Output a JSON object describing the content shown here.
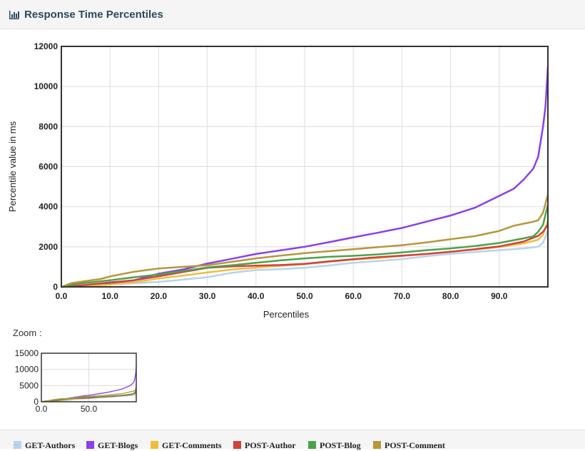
{
  "header": {
    "title": "Response Time Percentiles"
  },
  "zoom": {
    "label": "Zoom :"
  },
  "chart_data": {
    "type": "line",
    "ylabel": "Percentile value in ms",
    "xlabel": "Percentiles",
    "xlim": [
      0,
      100
    ],
    "ylim": [
      0,
      12000
    ],
    "x_ticks": [
      0,
      10,
      20,
      30,
      40,
      50,
      60,
      70,
      80,
      90
    ],
    "x_tick_labels": [
      "0.0",
      "10.0",
      "20.0",
      "30.0",
      "40.0",
      "50.0",
      "60.0",
      "70.0",
      "80.0",
      "90.0"
    ],
    "y_ticks": [
      0,
      2000,
      4000,
      6000,
      8000,
      10000,
      12000
    ],
    "y_tick_labels": [
      "0",
      "2000",
      "4000",
      "6000",
      "8000",
      "10000",
      "12000"
    ],
    "grid": true,
    "legend": "bottom",
    "series": [
      {
        "name": "GET-Authors",
        "color": "#b6d3eb",
        "points": [
          [
            0,
            0
          ],
          [
            5,
            60
          ],
          [
            10,
            130
          ],
          [
            15,
            180
          ],
          [
            20,
            250
          ],
          [
            25,
            360
          ],
          [
            30,
            480
          ],
          [
            35,
            700
          ],
          [
            40,
            840
          ],
          [
            45,
            880
          ],
          [
            50,
            950
          ],
          [
            55,
            1070
          ],
          [
            60,
            1200
          ],
          [
            65,
            1290
          ],
          [
            70,
            1380
          ],
          [
            75,
            1530
          ],
          [
            80,
            1650
          ],
          [
            85,
            1740
          ],
          [
            90,
            1830
          ],
          [
            95,
            1920
          ],
          [
            98,
            2000
          ],
          [
            99,
            2200
          ],
          [
            99.5,
            2500
          ],
          [
            100,
            2850
          ]
        ]
      },
      {
        "name": "GET-Blogs",
        "color": "#8a3ff0",
        "points": [
          [
            0,
            0
          ],
          [
            5,
            70
          ],
          [
            10,
            180
          ],
          [
            15,
            330
          ],
          [
            20,
            660
          ],
          [
            25,
            870
          ],
          [
            30,
            1160
          ],
          [
            35,
            1400
          ],
          [
            40,
            1640
          ],
          [
            45,
            1820
          ],
          [
            50,
            2000
          ],
          [
            55,
            2230
          ],
          [
            60,
            2470
          ],
          [
            65,
            2700
          ],
          [
            70,
            2940
          ],
          [
            75,
            3250
          ],
          [
            80,
            3560
          ],
          [
            85,
            3950
          ],
          [
            90,
            4540
          ],
          [
            93,
            4900
          ],
          [
            95,
            5350
          ],
          [
            97,
            5900
          ],
          [
            98,
            6500
          ],
          [
            99,
            8000
          ],
          [
            99.5,
            9000
          ],
          [
            100,
            11000
          ]
        ]
      },
      {
        "name": "GET-Comments",
        "color": "#efbd3e",
        "points": [
          [
            0,
            0
          ],
          [
            5,
            40
          ],
          [
            10,
            110
          ],
          [
            15,
            230
          ],
          [
            20,
            420
          ],
          [
            25,
            560
          ],
          [
            30,
            720
          ],
          [
            35,
            860
          ],
          [
            40,
            960
          ],
          [
            45,
            1050
          ],
          [
            50,
            1130
          ],
          [
            55,
            1250
          ],
          [
            60,
            1360
          ],
          [
            65,
            1440
          ],
          [
            70,
            1540
          ],
          [
            75,
            1640
          ],
          [
            80,
            1760
          ],
          [
            85,
            1860
          ],
          [
            90,
            1990
          ],
          [
            95,
            2170
          ],
          [
            98,
            2350
          ],
          [
            99,
            2600
          ],
          [
            100,
            3300
          ]
        ]
      },
      {
        "name": "POST-Author",
        "color": "#d1423f",
        "points": [
          [
            0,
            0
          ],
          [
            5,
            100
          ],
          [
            10,
            220
          ],
          [
            15,
            330
          ],
          [
            20,
            530
          ],
          [
            25,
            740
          ],
          [
            30,
            950
          ],
          [
            35,
            1020
          ],
          [
            40,
            1060
          ],
          [
            45,
            1090
          ],
          [
            50,
            1150
          ],
          [
            55,
            1270
          ],
          [
            60,
            1380
          ],
          [
            65,
            1480
          ],
          [
            70,
            1560
          ],
          [
            75,
            1640
          ],
          [
            80,
            1750
          ],
          [
            85,
            1880
          ],
          [
            90,
            2020
          ],
          [
            95,
            2260
          ],
          [
            98,
            2550
          ],
          [
            99,
            2750
          ],
          [
            100,
            3100
          ]
        ]
      },
      {
        "name": "POST-Blog",
        "color": "#49a34a",
        "points": [
          [
            0,
            0
          ],
          [
            3,
            150
          ],
          [
            10,
            330
          ],
          [
            15,
            480
          ],
          [
            20,
            620
          ],
          [
            25,
            790
          ],
          [
            30,
            970
          ],
          [
            35,
            1080
          ],
          [
            40,
            1200
          ],
          [
            45,
            1320
          ],
          [
            50,
            1420
          ],
          [
            55,
            1500
          ],
          [
            60,
            1550
          ],
          [
            65,
            1620
          ],
          [
            70,
            1720
          ],
          [
            75,
            1830
          ],
          [
            80,
            1920
          ],
          [
            85,
            2040
          ],
          [
            90,
            2190
          ],
          [
            95,
            2420
          ],
          [
            97,
            2520
          ],
          [
            98,
            2750
          ],
          [
            99,
            3100
          ],
          [
            99.5,
            3600
          ],
          [
            100,
            4100
          ]
        ]
      },
      {
        "name": "POST-Comment",
        "color": "#b8963a",
        "points": [
          [
            0,
            0
          ],
          [
            2,
            180
          ],
          [
            5,
            290
          ],
          [
            8,
            390
          ],
          [
            10,
            520
          ],
          [
            15,
            760
          ],
          [
            20,
            920
          ],
          [
            25,
            1000
          ],
          [
            30,
            1080
          ],
          [
            35,
            1250
          ],
          [
            40,
            1420
          ],
          [
            45,
            1560
          ],
          [
            50,
            1680
          ],
          [
            55,
            1780
          ],
          [
            60,
            1880
          ],
          [
            65,
            1980
          ],
          [
            70,
            2080
          ],
          [
            75,
            2220
          ],
          [
            80,
            2380
          ],
          [
            85,
            2530
          ],
          [
            90,
            2790
          ],
          [
            93,
            3050
          ],
          [
            95,
            3150
          ],
          [
            97,
            3250
          ],
          [
            98,
            3330
          ],
          [
            99,
            3700
          ],
          [
            100,
            4600
          ]
        ]
      }
    ],
    "zoom_chart": {
      "ylim": [
        0,
        15000
      ],
      "y_ticks": [
        0,
        5000,
        10000,
        15000
      ],
      "y_tick_labels": [
        "0",
        "5000",
        "10000",
        "15000"
      ],
      "x_ticks": [
        0,
        50
      ],
      "x_tick_labels": [
        "0.0",
        "50.0"
      ]
    }
  }
}
